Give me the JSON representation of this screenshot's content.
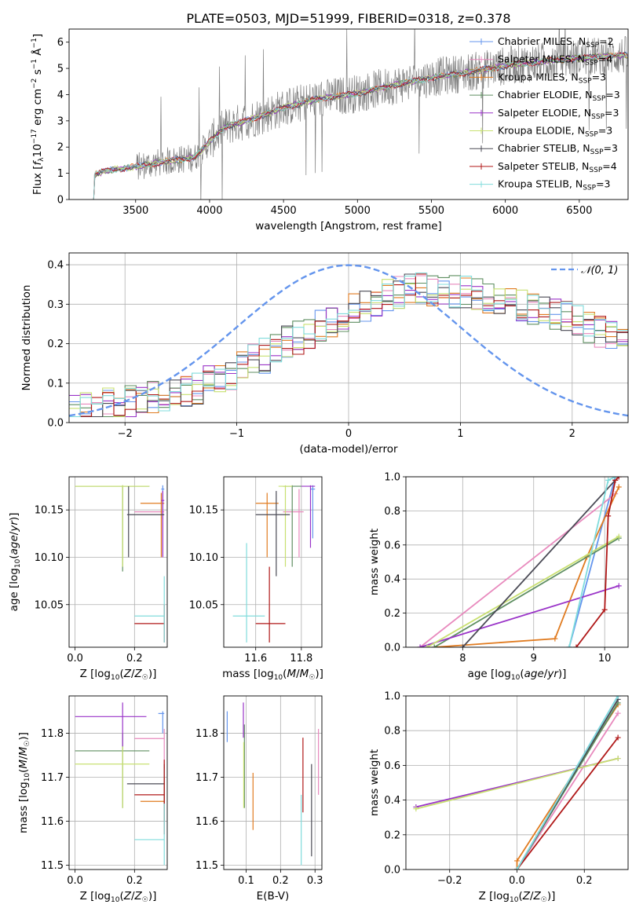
{
  "title": "PLATE=0503, MJD=51999, FIBERID=0318, z=0.378",
  "series": [
    {
      "name": "Chabrier MILES",
      "nssp": "2",
      "color": "#6495ed"
    },
    {
      "name": "Salpeter MILES",
      "nssp": "4",
      "color": "#e889bd"
    },
    {
      "name": "Kroupa MILES",
      "nssp": "3",
      "color": "#e07b20"
    },
    {
      "name": "Chabrier ELODIE",
      "nssp": "3",
      "color": "#5f8f62"
    },
    {
      "name": "Salpeter ELODIE",
      "nssp": "3",
      "color": "#9a34c8"
    },
    {
      "name": "Kroupa ELODIE",
      "nssp": "3",
      "color": "#c8e070"
    },
    {
      "name": "Chabrier STELIB",
      "nssp": "3",
      "color": "#4a4a55"
    },
    {
      "name": "Salpeter STELIB",
      "nssp": "4",
      "color": "#b01818"
    },
    {
      "name": "Kroupa STELIB",
      "nssp": "3",
      "color": "#80dcdc"
    }
  ],
  "chart_data": [
    {
      "type": "line",
      "title": "PLATE=0503, MJD=51999, FIBERID=0318, z=0.378",
      "xlabel": "wavelength [Angstrom, rest frame]",
      "ylabel": "Flux [f_λ 10^-17 erg cm^-2 s^-1 Å^-1]",
      "xlim": [
        3050,
        6830
      ],
      "ylim": [
        0,
        6.5
      ],
      "xticks": [
        3500,
        4000,
        4500,
        5000,
        5500,
        6000,
        6500
      ],
      "yticks": [
        0,
        1,
        2,
        3,
        4,
        5,
        6
      ],
      "continuum_knots": {
        "wavelength": [
          3200,
          3300,
          3500,
          3700,
          3900,
          4000,
          4100,
          4300,
          4500,
          4700,
          5000,
          5200,
          5500,
          5800,
          6000,
          6300,
          6600,
          6830
        ],
        "flux": [
          0.9,
          1.1,
          1.25,
          1.45,
          1.6,
          2.2,
          2.75,
          3.1,
          3.5,
          3.8,
          4.05,
          4.3,
          4.65,
          4.9,
          5.1,
          5.3,
          5.45,
          5.5
        ]
      },
      "legend": "upper right"
    },
    {
      "type": "step",
      "xlabel": "(data-model)/error",
      "ylabel": "Normed distribution",
      "xlim": [
        -2.5,
        2.5
      ],
      "ylim": [
        0,
        0.43
      ],
      "xticks": [
        -2,
        -1,
        0,
        1,
        2
      ],
      "yticks": [
        0.0,
        0.1,
        0.2,
        0.3,
        0.4
      ],
      "bin_width": 0.1,
      "reference_curve": "N(0,1)",
      "envelope": [
        0.03,
        0.035,
        0.04,
        0.045,
        0.05,
        0.055,
        0.06,
        0.065,
        0.07,
        0.075,
        0.085,
        0.09,
        0.1,
        0.11,
        0.125,
        0.14,
        0.155,
        0.17,
        0.185,
        0.2,
        0.215,
        0.23,
        0.245,
        0.26,
        0.275,
        0.29,
        0.3,
        0.31,
        0.32,
        0.33,
        0.335,
        0.34,
        0.34,
        0.34,
        0.335,
        0.33,
        0.325,
        0.32,
        0.31,
        0.305,
        0.3,
        0.29,
        0.285,
        0.275,
        0.265,
        0.255,
        0.245,
        0.235,
        0.22,
        0.21
      ],
      "legend": "upper right"
    },
    {
      "type": "errorbar",
      "xlabel": "Z [log10(Z/Z☉)]",
      "ylabel": "age [log10(age/yr)]",
      "xlim": [
        -0.02,
        0.31
      ],
      "ylim": [
        10.005,
        10.185
      ],
      "xticks": [
        0.0,
        0.2
      ],
      "yticks": [
        10.05,
        10.1,
        10.15
      ],
      "points": [
        {
          "s": 0,
          "x": 0.295,
          "y": 10.172,
          "xl": 0.29,
          "xh": 0.3,
          "yl": 10.14,
          "yh": 10.176
        },
        {
          "s": 1,
          "x": 0.295,
          "y": 10.148,
          "xl": 0.2,
          "xh": 0.3,
          "yl": 10.1,
          "yh": 10.17
        },
        {
          "s": 2,
          "x": 0.29,
          "y": 10.157,
          "xl": 0.22,
          "xh": 0.3,
          "yl": 10.1,
          "yh": 10.168
        },
        {
          "s": 3,
          "x": 0.16,
          "y": 10.175,
          "xl": 0.0,
          "xh": 0.25,
          "yl": 10.085,
          "yh": 10.176
        },
        {
          "s": 4,
          "x": 0.295,
          "y": 10.16,
          "xl": 0.29,
          "xh": 0.3,
          "yl": 10.1,
          "yh": 10.17
        },
        {
          "s": 5,
          "x": 0.16,
          "y": 10.175,
          "xl": 0.0,
          "xh": 0.25,
          "yl": 10.09,
          "yh": 10.176
        },
        {
          "s": 6,
          "x": 0.18,
          "y": 10.145,
          "xl": 0.175,
          "xh": 0.3,
          "yl": 10.1,
          "yh": 10.175
        },
        {
          "s": 7,
          "x": 0.3,
          "y": 10.03,
          "xl": 0.2,
          "xh": 0.3,
          "yl": 10.01,
          "yh": 10.05
        },
        {
          "s": 8,
          "x": 0.3,
          "y": 10.038,
          "xl": 0.2,
          "xh": 0.3,
          "yl": 10.01,
          "yh": 10.08
        }
      ]
    },
    {
      "type": "errorbar",
      "xlabel": "mass [log10(M/M☉)]",
      "xlim": [
        11.46,
        11.89
      ],
      "ylim": [
        10.005,
        10.185
      ],
      "xticks": [
        11.6,
        11.8
      ],
      "yticks": [
        10.05,
        10.1,
        10.15
      ],
      "points": [
        {
          "s": 0,
          "x": 11.85,
          "y": 10.172,
          "xl": 11.84,
          "xh": 11.86,
          "yl": 10.12,
          "yh": 10.176
        },
        {
          "s": 1,
          "x": 11.79,
          "y": 10.148,
          "xl": 11.72,
          "xh": 11.81,
          "yl": 10.1,
          "yh": 10.172
        },
        {
          "s": 2,
          "x": 11.65,
          "y": 10.157,
          "xl": 11.6,
          "xh": 11.7,
          "yl": 10.1,
          "yh": 10.168
        },
        {
          "s": 3,
          "x": 11.76,
          "y": 10.175,
          "xl": 11.72,
          "xh": 11.8,
          "yl": 10.09,
          "yh": 10.176
        },
        {
          "s": 4,
          "x": 11.84,
          "y": 10.175,
          "xl": 11.8,
          "xh": 11.86,
          "yl": 10.11,
          "yh": 10.176
        },
        {
          "s": 5,
          "x": 11.73,
          "y": 10.175,
          "xl": 11.7,
          "xh": 11.76,
          "yl": 10.09,
          "yh": 10.176
        },
        {
          "s": 6,
          "x": 11.69,
          "y": 10.145,
          "xl": 11.6,
          "xh": 11.75,
          "yl": 10.08,
          "yh": 10.17
        },
        {
          "s": 7,
          "x": 11.66,
          "y": 10.03,
          "xl": 11.6,
          "xh": 11.73,
          "yl": 10.01,
          "yh": 10.09
        },
        {
          "s": 8,
          "x": 11.56,
          "y": 10.038,
          "xl": 11.5,
          "xh": 11.64,
          "yl": 10.01,
          "yh": 10.115
        }
      ]
    },
    {
      "type": "line",
      "xlabel": "age [log10(age/yr)]",
      "ylabel": "mass weight",
      "xlim": [
        7.2,
        10.33
      ],
      "ylim": [
        0,
        1
      ],
      "xticks": [
        8,
        9,
        10
      ],
      "yticks": [
        0.0,
        0.2,
        0.4,
        0.6,
        0.8,
        1.0
      ],
      "series": [
        {
          "s": 0,
          "x": [
            9.5,
            10.15
          ],
          "y": [
            0.0,
            1.0
          ]
        },
        {
          "s": 1,
          "x": [
            7.4,
            10.15
          ],
          "y": [
            0.0,
            0.9
          ]
        },
        {
          "s": 2,
          "x": [
            7.6,
            9.3,
            9.75,
            10.2
          ],
          "y": [
            0.0,
            0.05,
            0.53,
            0.94
          ]
        },
        {
          "s": 3,
          "x": [
            7.6,
            10.2
          ],
          "y": [
            0.0,
            0.64
          ]
        },
        {
          "s": 4,
          "x": [
            7.4,
            10.2
          ],
          "y": [
            0.0,
            0.36
          ]
        },
        {
          "s": 5,
          "x": [
            7.5,
            10.2
          ],
          "y": [
            0.0,
            0.65
          ]
        },
        {
          "s": 6,
          "x": [
            8.0,
            10.15
          ],
          "y": [
            0.0,
            0.98
          ]
        },
        {
          "s": 7,
          "x": [
            9.6,
            10.0,
            10.05,
            10.15,
            10.2
          ],
          "y": [
            0.0,
            0.22,
            0.77,
            0.98,
            1.0
          ]
        },
        {
          "s": 8,
          "x": [
            9.5,
            10.05,
            10.15
          ],
          "y": [
            0.0,
            0.98,
            1.0
          ]
        }
      ]
    },
    {
      "type": "errorbar",
      "xlabel": "Z [log10(Z/Z☉)]",
      "ylabel": "mass [log10(M/M☉)]",
      "xlim": [
        -0.02,
        0.31
      ],
      "ylim": [
        11.49,
        11.885
      ],
      "xticks": [
        0.0,
        0.2
      ],
      "yticks": [
        11.5,
        11.6,
        11.7,
        11.8
      ],
      "points": [
        {
          "s": 0,
          "x": 0.295,
          "y": 11.845,
          "xl": 0.28,
          "xh": 0.3,
          "yl": 11.8,
          "yh": 11.85
        },
        {
          "s": 1,
          "x": 0.3,
          "y": 11.788,
          "xl": 0.2,
          "xh": 0.3,
          "yl": 11.72,
          "yh": 11.81
        },
        {
          "s": 2,
          "x": 0.3,
          "y": 11.645,
          "xl": 0.22,
          "xh": 0.3,
          "yl": 11.6,
          "yh": 11.7
        },
        {
          "s": 3,
          "x": 0.16,
          "y": 11.76,
          "xl": 0.0,
          "xh": 0.25,
          "yl": 11.63,
          "yh": 11.8
        },
        {
          "s": 4,
          "x": 0.16,
          "y": 11.838,
          "xl": 0.0,
          "xh": 0.24,
          "yl": 11.77,
          "yh": 11.87
        },
        {
          "s": 5,
          "x": 0.16,
          "y": 11.73,
          "xl": 0.0,
          "xh": 0.25,
          "yl": 11.63,
          "yh": 11.77
        },
        {
          "s": 6,
          "x": 0.3,
          "y": 11.685,
          "xl": 0.175,
          "xh": 0.3,
          "yl": 11.6,
          "yh": 11.73
        },
        {
          "s": 7,
          "x": 0.3,
          "y": 11.66,
          "xl": 0.2,
          "xh": 0.3,
          "yl": 11.57,
          "yh": 11.74
        },
        {
          "s": 8,
          "x": 0.3,
          "y": 11.558,
          "xl": 0.2,
          "xh": 0.3,
          "yl": 11.5,
          "yh": 11.64
        }
      ]
    },
    {
      "type": "errorbar",
      "xlabel": "E(B-V)",
      "xlim": [
        0.035,
        0.32
      ],
      "ylim": [
        11.49,
        11.885
      ],
      "xticks": [
        0.1,
        0.2,
        0.3
      ],
      "yticks": [
        11.5,
        11.6,
        11.7,
        11.8
      ],
      "points": [
        {
          "s": 0,
          "x": 0.045,
          "y": 11.81,
          "yl": 11.78,
          "yh": 11.85
        },
        {
          "s": 1,
          "x": 0.31,
          "y": 11.75,
          "yl": 11.66,
          "yh": 11.81
        },
        {
          "s": 2,
          "x": 0.12,
          "y": 11.645,
          "yl": 11.58,
          "yh": 11.71
        },
        {
          "s": 3,
          "x": 0.095,
          "y": 11.76,
          "yl": 11.63,
          "yh": 11.82
        },
        {
          "s": 4,
          "x": 0.092,
          "y": 11.838,
          "yl": 11.79,
          "yh": 11.87
        },
        {
          "s": 5,
          "x": 0.093,
          "y": 11.73,
          "yl": 11.63,
          "yh": 11.78
        },
        {
          "s": 6,
          "x": 0.29,
          "y": 11.62,
          "yl": 11.52,
          "yh": 11.73
        },
        {
          "s": 7,
          "x": 0.265,
          "y": 11.7,
          "yl": 11.62,
          "yh": 11.79
        },
        {
          "s": 8,
          "x": 0.26,
          "y": 11.56,
          "yl": 11.5,
          "yh": 11.66
        }
      ]
    },
    {
      "type": "line",
      "xlabel": "Z [log10(Z/Z☉)]",
      "ylabel": "mass weight",
      "xlim": [
        -0.33,
        0.33
      ],
      "ylim": [
        0,
        1
      ],
      "xticks": [
        -0.2,
        0.0,
        0.2
      ],
      "yticks": [
        0.0,
        0.2,
        0.4,
        0.6,
        0.8,
        1.0
      ],
      "series": [
        {
          "s": 0,
          "x": [
            0.0,
            0.3
          ],
          "y": [
            0.0,
            1.0
          ]
        },
        {
          "s": 1,
          "x": [
            0.0,
            0.3
          ],
          "y": [
            0.0,
            0.9
          ]
        },
        {
          "s": 2,
          "x": [
            0.0,
            0.0,
            0.3
          ],
          "y": [
            0.0,
            0.05,
            0.95
          ]
        },
        {
          "s": 3,
          "x": [
            0.0,
            0.3
          ],
          "y": [
            0.0,
            0.96
          ]
        },
        {
          "s": 4,
          "x": [
            -0.3,
            0.3
          ],
          "y": [
            0.36,
            0.64
          ]
        },
        {
          "s": 5,
          "x": [
            -0.3,
            0.3
          ],
          "y": [
            0.35,
            0.64
          ]
        },
        {
          "s": 6,
          "x": [
            0.0,
            0.3
          ],
          "y": [
            0.0,
            0.98
          ]
        },
        {
          "s": 7,
          "x": [
            0.0,
            0.3
          ],
          "y": [
            0.0,
            0.76
          ]
        },
        {
          "s": 8,
          "x": [
            0.0,
            0.3
          ],
          "y": [
            0.0,
            1.0
          ]
        }
      ]
    }
  ]
}
